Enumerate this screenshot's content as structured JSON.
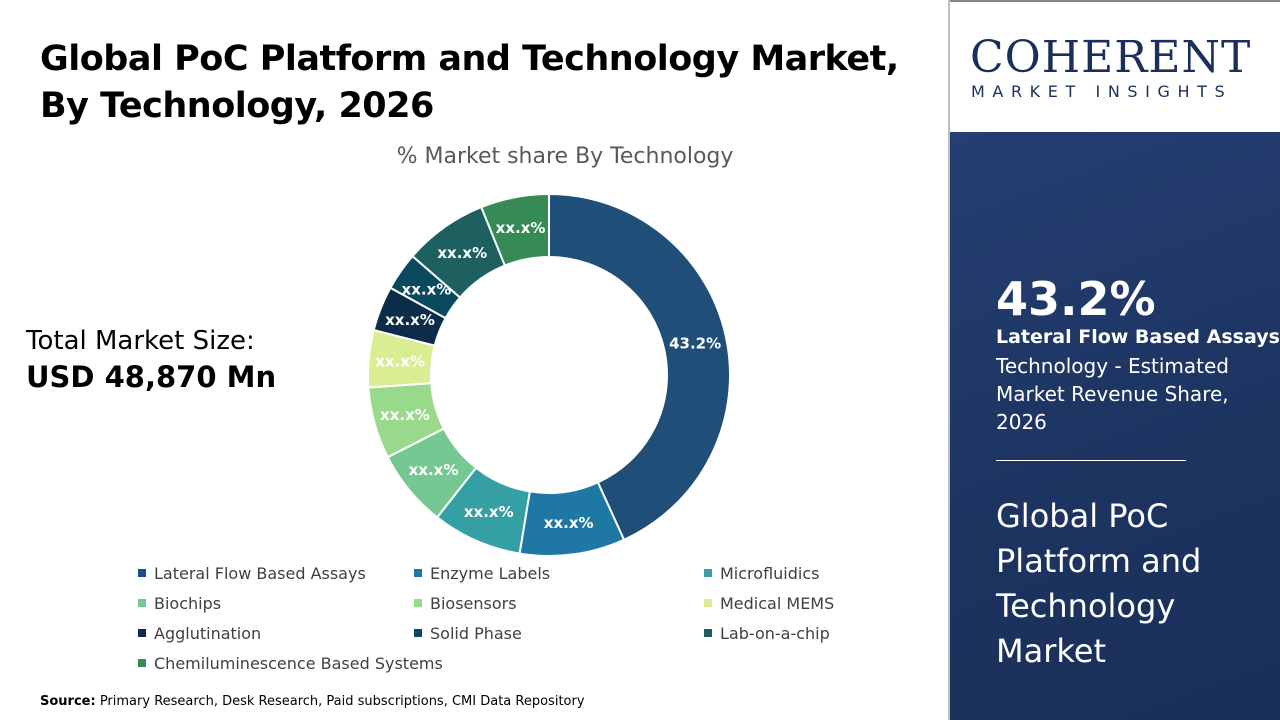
{
  "header": {
    "title": "Global PoC Platform and Technology Market, By Technology, 2026"
  },
  "total": {
    "label": "Total Market Size:",
    "value": "USD 48,870 Mn"
  },
  "source": {
    "label": "Source:",
    "text": " Primary Research, Desk Research, Paid subscriptions, CMI Data Repository"
  },
  "logo": {
    "brand": "COHERENT",
    "sub": "MARKET INSIGHTS"
  },
  "panel": {
    "share": "43.2%",
    "segment": "Lateral Flow Based Assays",
    "description": "Technology - Estimated Market Revenue Share, 2026",
    "market": "Global PoC Platform and Technology Market"
  },
  "chart_data": {
    "type": "pie",
    "donut": true,
    "title": "% Market share By Technology",
    "legend_position": "bottom",
    "categories": [
      "Lateral Flow Based Assays",
      "Enzyme Labels",
      "Microfluidics",
      "Biochips",
      "Biosensors",
      "Medical MEMS",
      "Agglutination",
      "Solid Phase",
      "Lab-on-a-chip",
      "Chemiluminescence Based Systems"
    ],
    "values": [
      43.2,
      9.4,
      8.0,
      6.9,
      6.4,
      5.1,
      4.0,
      3.4,
      7.5,
      6.1
    ],
    "data_labels": [
      "43.2%",
      "xx.x%",
      "xx.x%",
      "xx.x%",
      "xx.x%",
      "xx.x%",
      "xx.x%",
      "xx.x%",
      "xx.x%",
      "xx.x%"
    ],
    "colors": [
      "#1f4e79",
      "#1f77a4",
      "#34a0a4",
      "#76c893",
      "#99d98c",
      "#d9ed92",
      "#0d2c4a",
      "#0b4a5e",
      "#1e6060",
      "#358a55"
    ]
  }
}
